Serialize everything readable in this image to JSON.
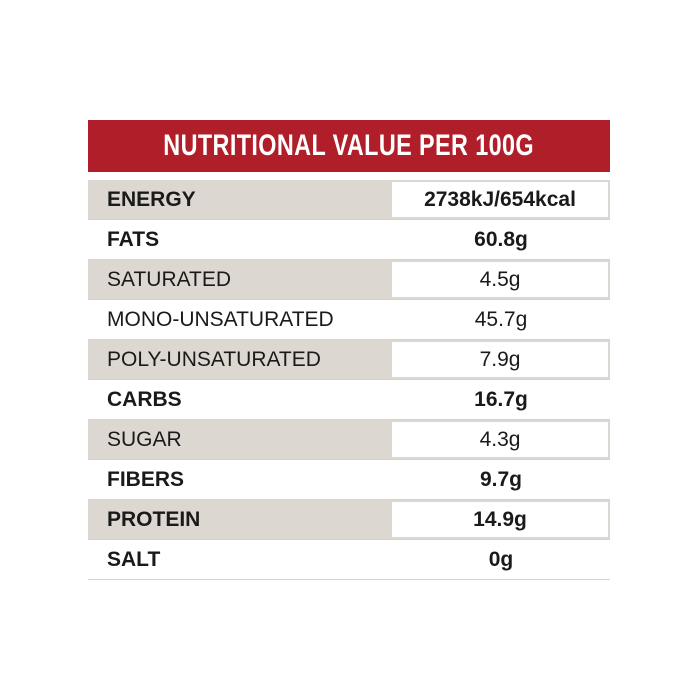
{
  "table": {
    "header": "NUTRITIONAL VALUE PER 100G",
    "rows": [
      [
        "ENERGY",
        "2738kJ/654kcal"
      ],
      [
        "FATS",
        "60.8g"
      ],
      [
        "SATURATED",
        "4.5g"
      ],
      [
        "MONO-UNSATURATED",
        "45.7g"
      ],
      [
        "POLY-UNSATURATED",
        "7.9g"
      ],
      [
        "CARBS",
        "16.7g"
      ],
      [
        "SUGAR",
        "4.3g"
      ],
      [
        "FIBERS",
        "9.7g"
      ],
      [
        "PROTEIN",
        "14.9g"
      ],
      [
        "SALT",
        "0g"
      ]
    ]
  }
}
